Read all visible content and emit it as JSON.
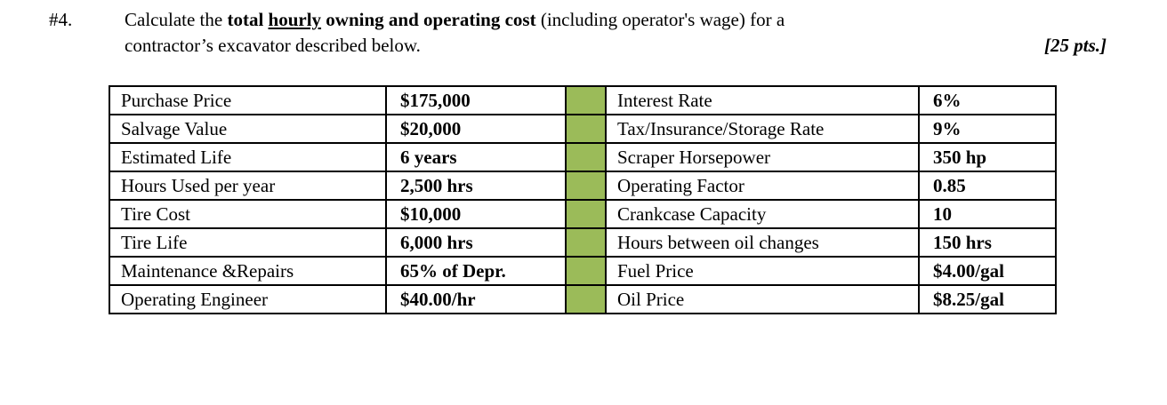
{
  "header": {
    "number": "#4.",
    "line1_segments": [
      {
        "text": "Calculate the "
      },
      {
        "text": "total ",
        "b": true
      },
      {
        "text": "hourly",
        "b": true,
        "u": true
      },
      {
        "text": " owning and operating cost",
        "b": true
      },
      {
        "text": " (including operator's wage) for a"
      }
    ],
    "line2": "contractor’s excavator described below.",
    "points": "[25 pts.]"
  },
  "table": {
    "accent_color": "#9BBB59",
    "rows": [
      {
        "left_label": "Purchase Price",
        "left_value": "$175,000",
        "right_label": "Interest Rate",
        "right_value": "6%"
      },
      {
        "left_label": "Salvage Value",
        "left_value": "$20,000",
        "right_label": "Tax/Insurance/Storage Rate",
        "right_value": "9%"
      },
      {
        "left_label": "Estimated Life",
        "left_value": "6 years",
        "right_label": "Scraper Horsepower",
        "right_value": "350 hp"
      },
      {
        "left_label": "Hours Used per year",
        "left_value": "2,500 hrs",
        "right_label": "Operating Factor",
        "right_value": "0.85"
      },
      {
        "left_label": "Tire Cost",
        "left_value": "$10,000",
        "right_label": "Crankcase Capacity",
        "right_value": "10"
      },
      {
        "left_label": "Tire Life",
        "left_value": "6,000 hrs",
        "right_label": "Hours between oil changes",
        "right_value": "150 hrs"
      },
      {
        "left_label": "Maintenance &Repairs",
        "left_value": "65% of Depr.",
        "right_label": "Fuel Price",
        "right_value": "$4.00/gal"
      },
      {
        "left_label": "Operating Engineer",
        "left_value": "$40.00/hr",
        "right_label": "Oil Price",
        "right_value": "$8.25/gal"
      }
    ]
  }
}
